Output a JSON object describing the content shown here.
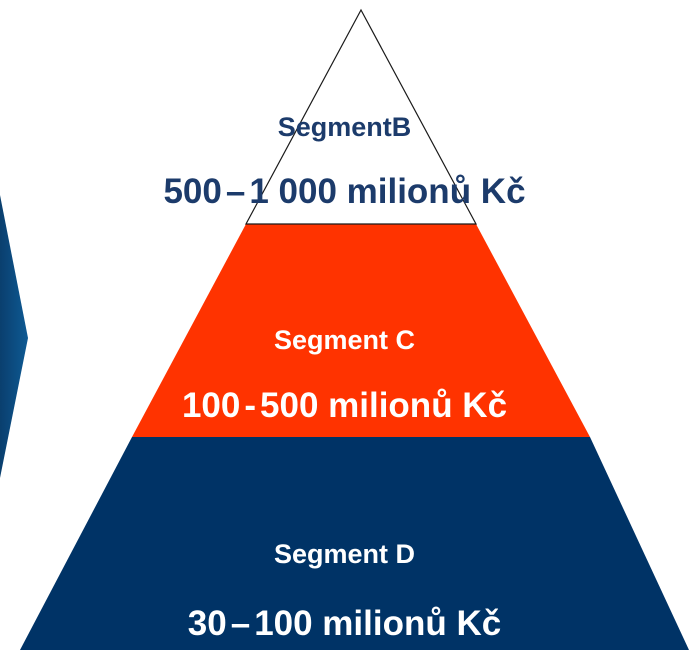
{
  "colors": {
    "segment_b_fill": "#ffffff",
    "segment_c_fill": "#ff3300",
    "segment_d_fill": "#003366",
    "arrow_fill": "#0a4a7c",
    "dark_text": "#1c3b6b",
    "light_text": "#ffffff"
  },
  "segments": [
    {
      "name": "SegmentB",
      "range_from": "500",
      "range_sep": "–",
      "range_to": "1 000 milionů Kč"
    },
    {
      "name": "Segment C",
      "range_from": "100",
      "range_sep": "-",
      "range_to": "500 milionů Kč"
    },
    {
      "name": "Segment D",
      "range_from": "30",
      "range_sep": "–",
      "range_to": "100 milionů Kč"
    }
  ]
}
